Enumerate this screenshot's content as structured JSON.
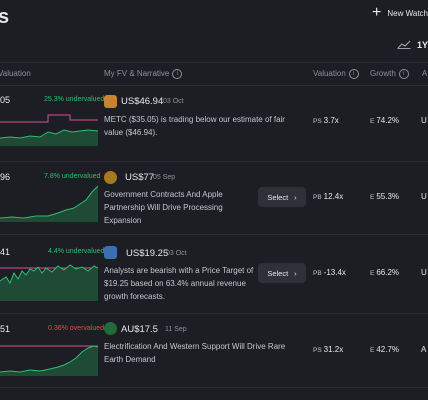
{
  "header": {
    "title_fragment": "s",
    "new_watchlist_label": "New Watch",
    "range_label": "1Y"
  },
  "columns": {
    "valuation_left": "Valuation",
    "fv_narrative": "My FV & Narrative",
    "valuation": "Valuation",
    "growth": "Growth",
    "cut": "A"
  },
  "rows": [
    {
      "value_fragment": "05",
      "undervalued": "25.3% undervalued",
      "undervalued_color": "#2fbf71",
      "fair_value": "US$46.94",
      "date": "03 Oct",
      "narrative": "METC ($35.05) is trading below our estimate of fair value ($46.94).",
      "has_select": false,
      "valuation_prefix": "PS",
      "valuation_value": "3.7x",
      "growth_prefix": "E",
      "growth_value": "74.2%",
      "cut_text": "U"
    },
    {
      "value_fragment": "96",
      "undervalued": "7.8% undervalued",
      "undervalued_color": "#2fbf71",
      "fair_value": "US$77",
      "date": "05 Sep",
      "narrative": "Government Contracts And Apple Partnership Will Drive Processing Expansion",
      "has_select": true,
      "select_label": "Select",
      "valuation_prefix": "PB",
      "valuation_value": "12.4x",
      "growth_prefix": "E",
      "growth_value": "55.3%",
      "cut_text": "U"
    },
    {
      "value_fragment": "41",
      "undervalued": "4.4% undervalued",
      "undervalued_color": "#2fbf71",
      "fair_value": "US$19.25",
      "date": "03 Oct",
      "narrative": "Analysts are bearish with a Price Target of $19.25 based on 63.4% annual revenue growth forecasts.",
      "has_select": true,
      "select_label": "Select",
      "valuation_prefix": "PB",
      "valuation_value": "-13.4x",
      "growth_prefix": "E",
      "growth_value": "66.2%",
      "cut_text": "U"
    },
    {
      "value_fragment": "51",
      "undervalued": "0.36% overvalued",
      "undervalued_color": "#e5484d",
      "fair_value": "AU$17.5",
      "date": "11 Sep",
      "narrative": "Electrification And Western Support Will Drive Rare Earth Demand",
      "has_select": false,
      "valuation_prefix": "PS",
      "valuation_value": "31.2x",
      "growth_prefix": "E",
      "growth_value": "42.7%",
      "cut_text": "A"
    }
  ],
  "colors": {
    "background": "#1c1e23",
    "positive": "#2fbf71",
    "negative": "#e5484d",
    "fair_value_line": "#d84f9a"
  }
}
